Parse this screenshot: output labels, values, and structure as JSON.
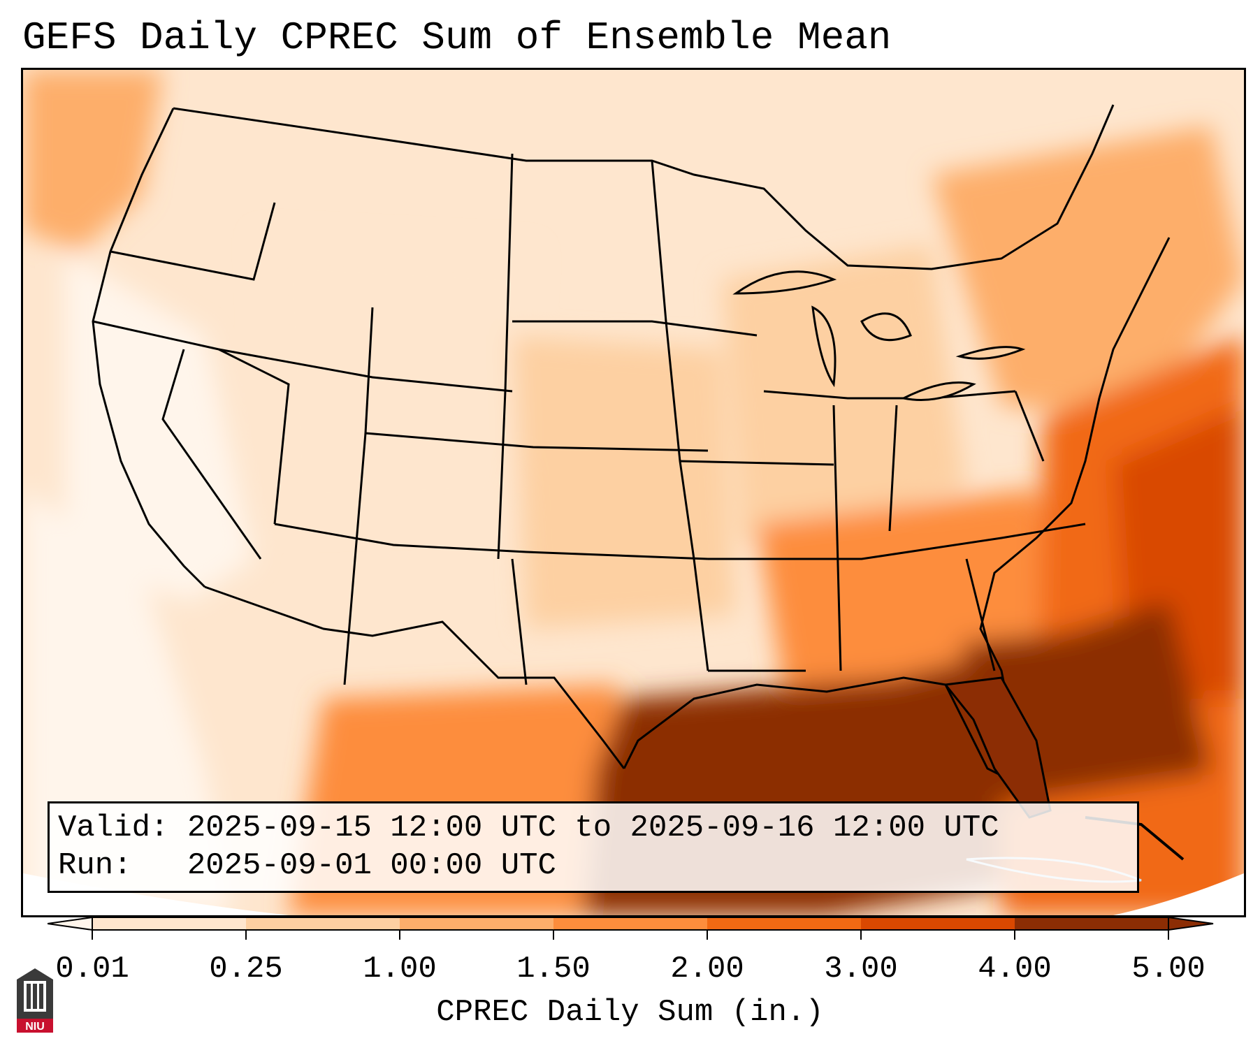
{
  "title": "GEFS Daily CPREC Sum of Ensemble Mean",
  "info": {
    "valid_label": "Valid:",
    "valid_value": "2025-09-15 12:00 UTC to 2025-09-16 12:00 UTC",
    "run_label": "Run:",
    "run_value": "2025-09-01 00:00 UTC"
  },
  "colorbar": {
    "label": "CPREC Daily Sum (in.)",
    "ticks": [
      "0.01",
      "0.25",
      "1.00",
      "1.50",
      "2.00",
      "3.00",
      "4.00",
      "5.00"
    ],
    "colors": [
      "#fff5eb",
      "#fee6ce",
      "#fdd0a2",
      "#fdae6b",
      "#fd8d3c",
      "#f16913",
      "#d94801",
      "#8c2d04"
    ],
    "extend": "both"
  },
  "map": {
    "region": "Contiguous United States, Mexico and Gulf of Mexico",
    "heaviest_area": "Gulf of Mexico and Southeast Atlantic",
    "colors": {
      "low": "#fff5eb",
      "mid": "#fdae6b",
      "high": "#8c2d04",
      "border": "#000000"
    }
  },
  "logo": {
    "text": "NIU",
    "icon": "niu-building-icon"
  }
}
